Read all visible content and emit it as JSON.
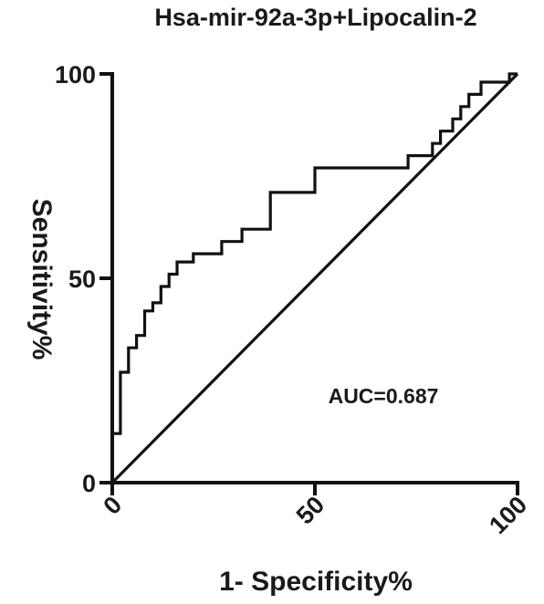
{
  "chart_data": {
    "type": "line",
    "title": "Hsa-mir-92a-3p+Lipocalin-2",
    "xlabel": "1- Specificity%",
    "ylabel": "Sensitivity%",
    "xlim": [
      0,
      100
    ],
    "ylim": [
      0,
      100
    ],
    "x_ticks": [
      0,
      50,
      100
    ],
    "y_ticks": [
      0,
      50,
      100
    ],
    "x_tick_labels": [
      "0",
      "50",
      "100"
    ],
    "y_tick_labels": [
      "0",
      "50",
      "100"
    ],
    "annotation": "AUC=0.687",
    "grid": false,
    "series": [
      {
        "line_color": "#111111",
        "step": true,
        "points": [
          [
            0,
            0
          ],
          [
            0,
            12
          ],
          [
            2,
            12
          ],
          [
            2,
            27
          ],
          [
            4,
            27
          ],
          [
            4,
            33
          ],
          [
            6,
            33
          ],
          [
            6,
            36
          ],
          [
            8,
            36
          ],
          [
            8,
            42
          ],
          [
            10,
            42
          ],
          [
            10,
            44
          ],
          [
            12,
            44
          ],
          [
            12,
            48
          ],
          [
            14,
            48
          ],
          [
            14,
            51
          ],
          [
            16,
            51
          ],
          [
            16,
            54
          ],
          [
            20,
            54
          ],
          [
            20,
            56
          ],
          [
            27,
            56
          ],
          [
            27,
            59
          ],
          [
            32,
            59
          ],
          [
            32,
            62
          ],
          [
            39,
            62
          ],
          [
            39,
            71
          ],
          [
            50,
            71
          ],
          [
            50,
            77
          ],
          [
            73,
            77
          ],
          [
            73,
            80
          ],
          [
            79,
            80
          ],
          [
            79,
            83
          ],
          [
            81,
            83
          ],
          [
            81,
            86
          ],
          [
            84,
            86
          ],
          [
            84,
            89
          ],
          [
            86,
            89
          ],
          [
            86,
            92
          ],
          [
            88,
            92
          ],
          [
            88,
            95
          ],
          [
            91,
            95
          ],
          [
            91,
            98
          ],
          [
            98,
            98
          ],
          [
            98,
            100
          ],
          [
            100,
            100
          ]
        ]
      },
      {
        "line_color": "#111111",
        "points": [
          [
            0,
            0
          ],
          [
            100,
            100
          ]
        ]
      }
    ]
  }
}
